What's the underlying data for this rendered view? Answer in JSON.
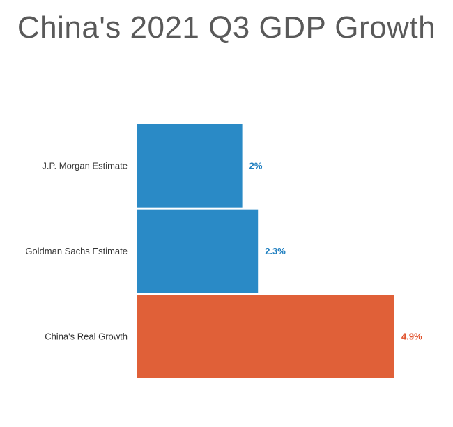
{
  "chart_data": {
    "type": "bar",
    "orientation": "horizontal",
    "title": "China's 2021 Q3 GDP Growth",
    "categories": [
      "J.P. Morgan Estimate",
      "Goldman Sachs Estimate",
      "China's Real Growth"
    ],
    "values": [
      2,
      2.3,
      4.9
    ],
    "value_labels": [
      "2%",
      "2.3%",
      "4.9%"
    ],
    "colors": [
      "#2a8ac6",
      "#2a8ac6",
      "#e06038"
    ],
    "label_colors": [
      "#1f7fc0",
      "#1f7fc0",
      "#e0502a"
    ],
    "xlim": [
      0,
      4.9
    ],
    "grid": false,
    "legend": "none"
  }
}
